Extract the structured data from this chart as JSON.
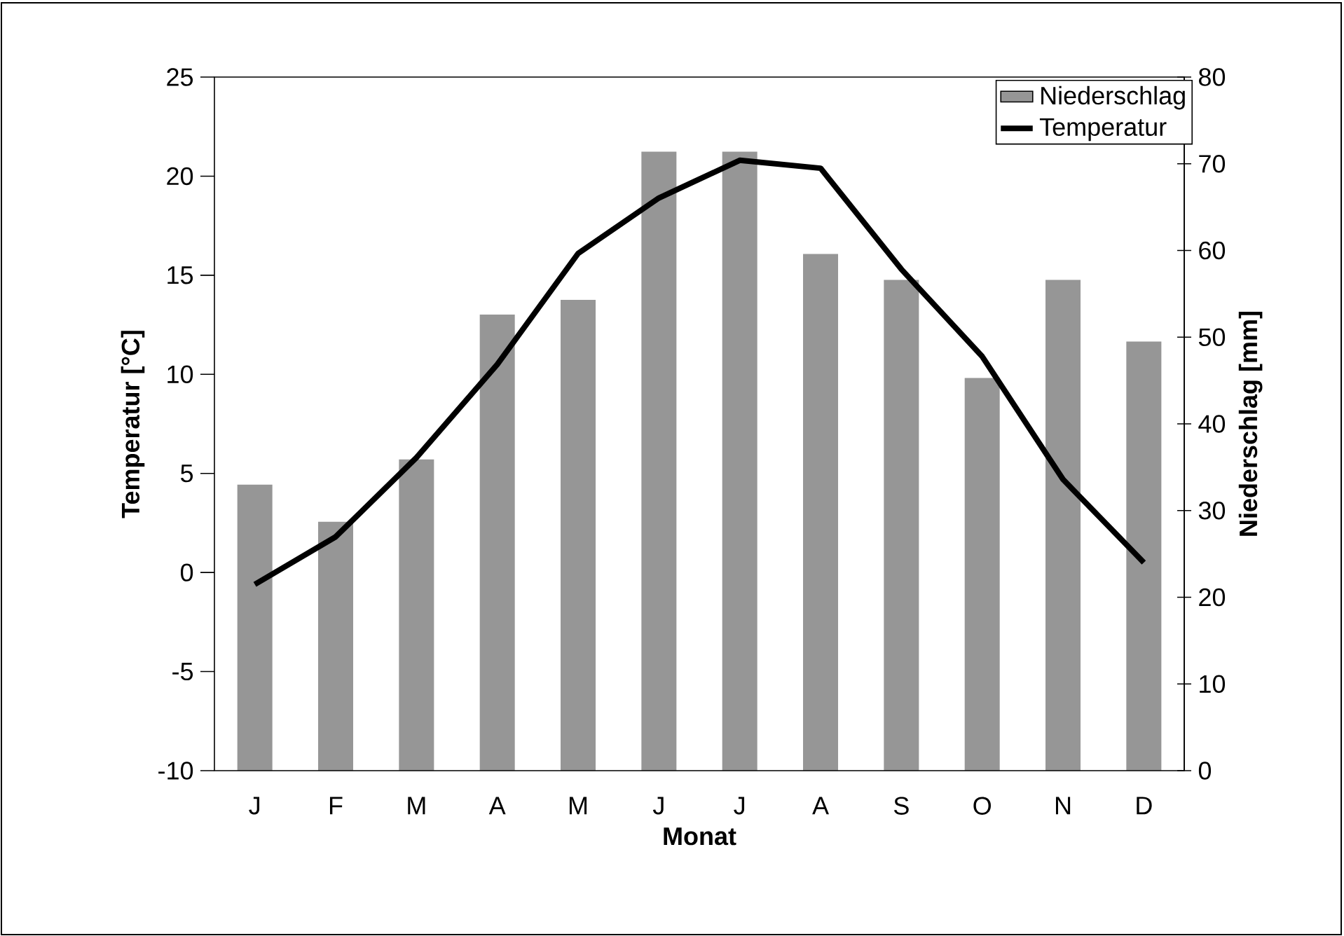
{
  "chart_data": {
    "type": "bar",
    "xlabel": "Monat",
    "ylabel": "Temperatur [°C]",
    "y2label": "Niederschlag [mm]",
    "categories": [
      "J",
      "F",
      "M",
      "A",
      "M",
      "J",
      "J",
      "A",
      "S",
      "O",
      "N",
      "D"
    ],
    "series": [
      {
        "name": "Niederschlag",
        "axis": "y2",
        "color": "#969696",
        "values": [
          33,
          28.7,
          35.9,
          52.6,
          54.3,
          71.4,
          71.4,
          59.6,
          56.6,
          45.3,
          56.6,
          49.5
        ]
      },
      {
        "name": "Temperatur",
        "type": "line",
        "color": "#000000",
        "line_style": "solid",
        "values": [
          -0.6,
          1.8,
          5.8,
          10.5,
          16.1,
          18.9,
          20.8,
          20.4,
          15.3,
          10.9,
          4.7,
          0.5
        ]
      }
    ],
    "ylim": [
      -10,
      25
    ],
    "yticks": [
      -10,
      -5,
      0,
      5,
      10,
      15,
      20,
      25
    ],
    "y2lim": [
      0,
      80
    ],
    "y2ticks": [
      0,
      10,
      20,
      30,
      40,
      50,
      60,
      70,
      80
    ],
    "legend": "top right"
  }
}
